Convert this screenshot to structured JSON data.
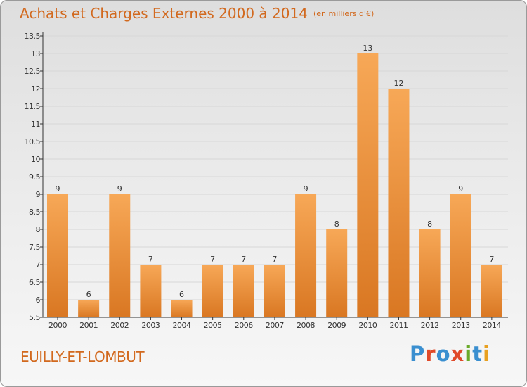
{
  "header": {
    "title": "Achats et Charges Externes 2000 à 2014",
    "unit": "(en milliers d'€)"
  },
  "footer": {
    "commune": "EUILLY-ET-LOMBUT",
    "logo_letters": [
      "P",
      "r",
      "o",
      "x",
      "i",
      "t",
      "i"
    ],
    "logo_colors": [
      "#3a8fd0",
      "#e04a2a",
      "#3a8fd0",
      "#e04a2a",
      "#6aaa2a",
      "#3a8fd0",
      "#e8a020"
    ]
  },
  "colors": {
    "bar_light": "#f7a857",
    "bar_dark": "#d97722",
    "axis": "#333333",
    "grid": "#d7d7d7",
    "text_accent": "#d2691e"
  },
  "chart_data": {
    "type": "bar",
    "title": "Achats et Charges Externes 2000 à 2014",
    "subtitle": "(en milliers d'€)",
    "xlabel": "",
    "ylabel": "",
    "categories": [
      "2000",
      "2001",
      "2002",
      "2003",
      "2004",
      "2005",
      "2006",
      "2007",
      "2008",
      "2009",
      "2010",
      "2011",
      "2012",
      "2013",
      "2014"
    ],
    "values": [
      9,
      6,
      9,
      7,
      6,
      7,
      7,
      7,
      9,
      8,
      13,
      12,
      8,
      9,
      7
    ],
    "ylim": [
      5.5,
      13.5
    ],
    "yticks": [
      "5.5",
      "6",
      "6.5",
      "7",
      "7.5",
      "8",
      "8.5",
      "9",
      "9.5",
      "10",
      "10.5",
      "11",
      "11.5",
      "12",
      "12.5",
      "13",
      "13.5"
    ],
    "grid": true,
    "legend": "none"
  }
}
